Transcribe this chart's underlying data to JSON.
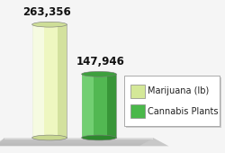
{
  "values": [
    263356,
    147946
  ],
  "labels": [
    "263,356",
    "147,946"
  ],
  "bar1_body": "#eef7c0",
  "bar1_highlight": "#f8fce8",
  "bar1_shade": "#c8d890",
  "bar1_top": "#cede98",
  "bar2_body": "#52b852",
  "bar2_highlight": "#78d478",
  "bar2_shade": "#2d882d",
  "bar2_top": "#3da03d",
  "legend_colors": [
    "#d4e898",
    "#4ab84a"
  ],
  "legend_entries": [
    "Marijuana (lb)",
    "Cannabis Plants"
  ],
  "label_fontsize": 8.5,
  "legend_fontsize": 7,
  "background_color": "#f5f5f5",
  "floor_color": "#d0d0d0",
  "floor_highlight": "#e8e8e8"
}
